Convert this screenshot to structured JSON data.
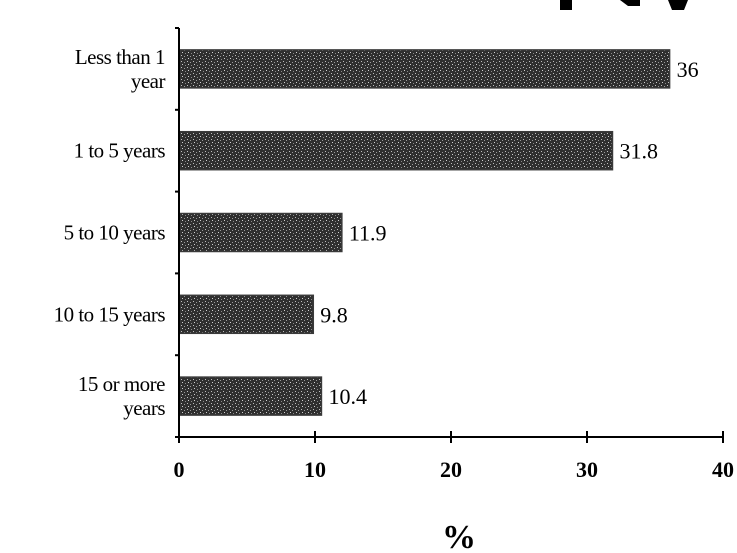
{
  "chart_data": {
    "type": "bar",
    "orientation": "horizontal",
    "categories": [
      [
        "Less than 1",
        "year"
      ],
      [
        "1 to 5 years"
      ],
      [
        "5 to 10 years"
      ],
      [
        "10 to 15 years"
      ],
      [
        "15 or more",
        "years"
      ]
    ],
    "values": [
      36,
      31.8,
      11.9,
      9.8,
      10.4
    ],
    "value_labels": [
      "36",
      "31.8",
      "11.9",
      "9.8",
      "10.4"
    ],
    "xlim": [
      0,
      40
    ],
    "xticks": [
      "0",
      "10",
      "20",
      "30",
      "40"
    ],
    "xlabel": "%",
    "grid": false,
    "legend": "none",
    "bar_color": "#3a3a3a"
  }
}
